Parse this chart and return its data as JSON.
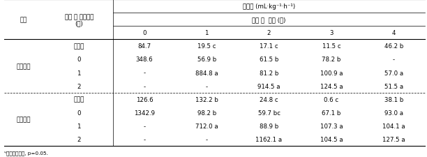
{
  "header_right_row1": "호흡량 (mL·kg⁻¹·h⁻¹)",
  "header_right_row2": "수확 후  기간 (월)",
  "col_품종": "품종",
  "col_탈삽": "탈삽 전 저장기간",
  "col_탈삽2": "(월)",
  "time_cols": [
    "0",
    "1",
    "2",
    "3",
    "4"
  ],
  "variety1": "상주둥시",
  "variety2": "도근조생",
  "treatment_무처리": "무처리",
  "rows": [
    {
      "variety_show": "상주둥시",
      "variety_row": 1,
      "treatment": "무처리",
      "values": [
        "84.7",
        "19.5 c",
        "17.1 c",
        "11.5 c",
        "46.2 b"
      ]
    },
    {
      "variety_show": "",
      "variety_row": 0,
      "treatment": "0",
      "values": [
        "348.6",
        "56.9 b",
        "61.5 b",
        "78.2 b",
        "-"
      ]
    },
    {
      "variety_show": "",
      "variety_row": 0,
      "treatment": "1",
      "values": [
        "-",
        "884.8 a",
        "81.2 b",
        "100.9 a",
        "57.0 a"
      ]
    },
    {
      "variety_show": "",
      "variety_row": 0,
      "treatment": "2",
      "values": [
        "-",
        "-",
        "914.5 a",
        "124.5 a",
        "51.5 a"
      ]
    },
    {
      "variety_show": "도근조생",
      "variety_row": 1,
      "treatment": "무처리",
      "values": [
        "126.6",
        "132.2 b",
        "24.8 c",
        "0.6 c",
        "38.1 b"
      ]
    },
    {
      "variety_show": "",
      "variety_row": 0,
      "treatment": "0",
      "values": [
        "1342.9",
        "98.2 b",
        "59.7 bc",
        "67.1 b",
        "93.0 a"
      ]
    },
    {
      "variety_show": "",
      "variety_row": 0,
      "treatment": "1",
      "values": [
        "-",
        "712.0 a",
        "88.9 b",
        "107.3 a",
        "104.1 a"
      ]
    },
    {
      "variety_show": "",
      "variety_row": 0,
      "treatment": "2",
      "values": [
        "-",
        "-",
        "1162.1 a",
        "104.5 a",
        "127.5 a"
      ]
    }
  ],
  "footnote": "ᶣ던컨다중검정, p=0.05.",
  "bg": "#ffffff",
  "figw": 6.12,
  "figh": 2.26,
  "dpi": 100
}
